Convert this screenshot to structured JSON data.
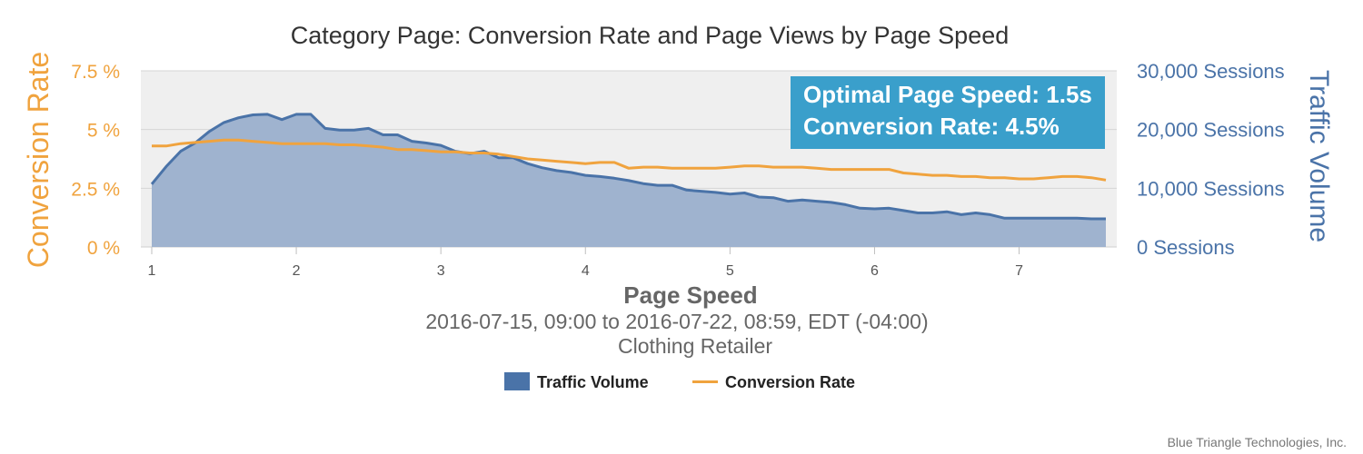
{
  "chart_data": {
    "type": "area",
    "title": "Category Page: Conversion Rate and Page Views by Page Speed",
    "subtitle_1": "2016-07-15, 09:00 to 2016-07-22, 08:59, EDT (-04:00)",
    "subtitle_2": "Clothing Retailer",
    "xlabel": "Page Speed",
    "ylabel_left": "Conversion Rate",
    "ylabel_right": "Traffic Volume",
    "xlim": [
      1,
      7.6
    ],
    "x_ticks": [
      "1",
      "2",
      "3",
      "4",
      "5",
      "6",
      "7"
    ],
    "ylim_left": [
      0,
      7.5
    ],
    "ylim_right": [
      0,
      30000
    ],
    "left_ticks": [
      "0 %",
      "2.5 %",
      "5 %",
      "7.5 %"
    ],
    "right_ticks": [
      "0 Sessions",
      "10,000 Sessions",
      "20,000 Sessions",
      "30,000 Sessions"
    ],
    "grid": true,
    "legend_position": "bottom",
    "annotation": [
      "Optimal Page Speed: 1.5s",
      "Conversion Rate: 4.5%"
    ],
    "credit": "Blue Triangle Technologies, Inc.",
    "colors": {
      "traffic_line": "#4a73a8",
      "traffic_fill": "#9fb3cf",
      "conversion_line": "#f0a33e",
      "annotation_bg": "#3a9fcb",
      "plot_bg": "#efefef"
    },
    "series": [
      {
        "name": "Traffic Volume",
        "axis": "right",
        "x": [
          1.0,
          1.1,
          1.2,
          1.3,
          1.4,
          1.5,
          1.6,
          1.7,
          1.8,
          1.9,
          2.0,
          2.1,
          2.2,
          2.3,
          2.4,
          2.5,
          2.6,
          2.7,
          2.8,
          2.9,
          3.0,
          3.1,
          3.2,
          3.3,
          3.4,
          3.5,
          3.6,
          3.7,
          3.8,
          3.9,
          4.0,
          4.1,
          4.2,
          4.3,
          4.4,
          4.5,
          4.6,
          4.7,
          4.8,
          4.9,
          5.0,
          5.1,
          5.2,
          5.3,
          5.4,
          5.5,
          5.6,
          5.7,
          5.8,
          5.9,
          6.0,
          6.1,
          6.2,
          6.3,
          6.4,
          6.5,
          6.6,
          6.7,
          6.8,
          6.9,
          7.0,
          7.1,
          7.2,
          7.3,
          7.4,
          7.5,
          7.6
        ],
        "values": [
          10700,
          13700,
          16300,
          17700,
          19700,
          21200,
          22000,
          22500,
          22600,
          21700,
          22600,
          22600,
          20200,
          19900,
          19900,
          20200,
          19100,
          19100,
          18000,
          17700,
          17300,
          16300,
          15900,
          16300,
          15200,
          15200,
          14200,
          13500,
          13000,
          12700,
          12200,
          12000,
          11700,
          11300,
          10800,
          10500,
          10500,
          9700,
          9500,
          9300,
          9000,
          9200,
          8500,
          8400,
          7800,
          8000,
          7800,
          7600,
          7200,
          6600,
          6500,
          6600,
          6200,
          5800,
          5800,
          6000,
          5500,
          5800,
          5500,
          4900,
          4900,
          4900,
          4900,
          4900,
          4900,
          4800,
          4800
        ]
      },
      {
        "name": "Conversion Rate",
        "axis": "left",
        "x": [
          1.0,
          1.1,
          1.2,
          1.3,
          1.4,
          1.5,
          1.6,
          1.7,
          1.8,
          1.9,
          2.0,
          2.1,
          2.2,
          2.3,
          2.4,
          2.5,
          2.6,
          2.7,
          2.8,
          2.9,
          3.0,
          3.1,
          3.2,
          3.3,
          3.4,
          3.5,
          3.6,
          3.7,
          3.8,
          3.9,
          4.0,
          4.1,
          4.2,
          4.3,
          4.4,
          4.5,
          4.6,
          4.7,
          4.8,
          4.9,
          5.0,
          5.1,
          5.2,
          5.3,
          5.4,
          5.5,
          5.6,
          5.7,
          5.8,
          5.9,
          6.0,
          6.1,
          6.2,
          6.3,
          6.4,
          6.5,
          6.6,
          6.7,
          6.8,
          6.9,
          7.0,
          7.1,
          7.2,
          7.3,
          7.4,
          7.5,
          7.6
        ],
        "values": [
          4.3,
          4.3,
          4.4,
          4.45,
          4.5,
          4.55,
          4.55,
          4.5,
          4.45,
          4.4,
          4.4,
          4.4,
          4.4,
          4.35,
          4.35,
          4.3,
          4.25,
          4.15,
          4.15,
          4.1,
          4.05,
          4.05,
          4.0,
          4.0,
          3.95,
          3.85,
          3.75,
          3.7,
          3.65,
          3.6,
          3.55,
          3.6,
          3.6,
          3.35,
          3.4,
          3.4,
          3.35,
          3.35,
          3.35,
          3.35,
          3.4,
          3.45,
          3.45,
          3.4,
          3.4,
          3.4,
          3.35,
          3.3,
          3.3,
          3.3,
          3.3,
          3.3,
          3.15,
          3.1,
          3.05,
          3.05,
          3.0,
          3.0,
          2.95,
          2.95,
          2.9,
          2.9,
          2.95,
          3.0,
          3.0,
          2.95,
          2.85
        ]
      }
    ]
  }
}
